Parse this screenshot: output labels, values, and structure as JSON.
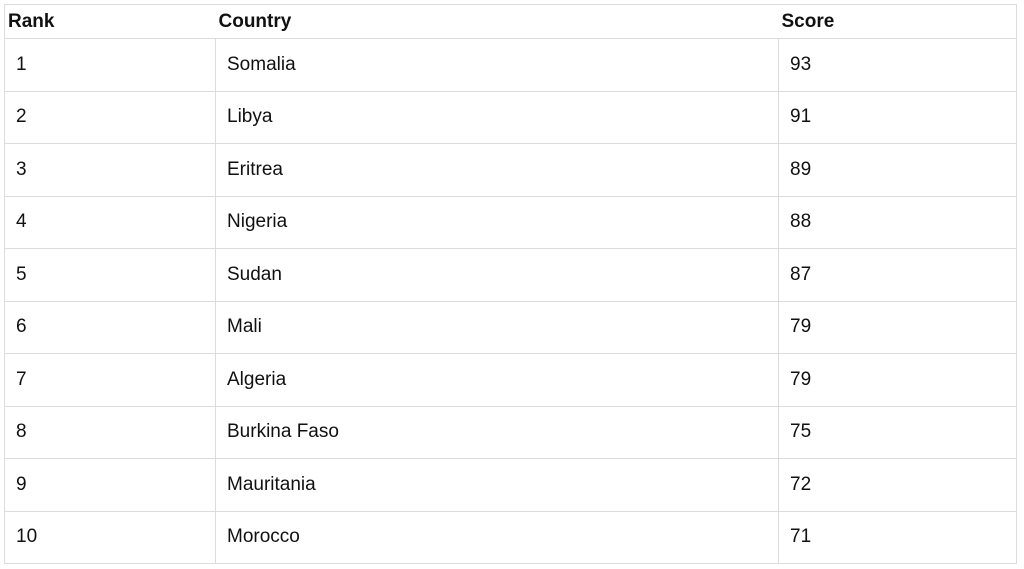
{
  "table": {
    "headers": [
      "Rank",
      "Country",
      "Score"
    ],
    "rows": [
      {
        "rank": "1",
        "country": "Somalia",
        "score": "93"
      },
      {
        "rank": "2",
        "country": "Libya",
        "score": "91"
      },
      {
        "rank": "3",
        "country": "Eritrea",
        "score": "89"
      },
      {
        "rank": "4",
        "country": "Nigeria",
        "score": "88"
      },
      {
        "rank": "5",
        "country": "Sudan",
        "score": "87"
      },
      {
        "rank": "6",
        "country": "Mali",
        "score": "79"
      },
      {
        "rank": "7",
        "country": "Algeria",
        "score": "79"
      },
      {
        "rank": "8",
        "country": "Burkina Faso",
        "score": "75"
      },
      {
        "rank": "9",
        "country": "Mauritania",
        "score": "72"
      },
      {
        "rank": "10",
        "country": "Morocco",
        "score": "71"
      }
    ]
  }
}
